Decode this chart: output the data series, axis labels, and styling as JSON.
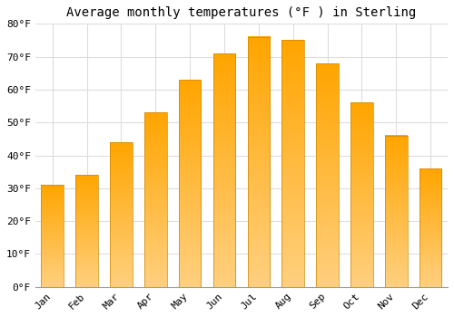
{
  "title": "Average monthly temperatures (°F ) in Sterling",
  "months": [
    "Jan",
    "Feb",
    "Mar",
    "Apr",
    "May",
    "Jun",
    "Jul",
    "Aug",
    "Sep",
    "Oct",
    "Nov",
    "Dec"
  ],
  "values": [
    31,
    34,
    44,
    53,
    63,
    71,
    76,
    75,
    68,
    56,
    46,
    36
  ],
  "bar_color_main": "#FFA500",
  "bar_color_light": "#FFD080",
  "bar_edge_color": "#CC8800",
  "ylim": [
    0,
    80
  ],
  "yticks": [
    0,
    10,
    20,
    30,
    40,
    50,
    60,
    70,
    80
  ],
  "ytick_labels": [
    "0°F",
    "10°F",
    "20°F",
    "30°F",
    "40°F",
    "50°F",
    "60°F",
    "70°F",
    "80°F"
  ],
  "background_color": "#FFFFFF",
  "grid_color": "#DDDDDD",
  "title_fontsize": 10,
  "tick_fontsize": 8,
  "bar_width": 0.65
}
